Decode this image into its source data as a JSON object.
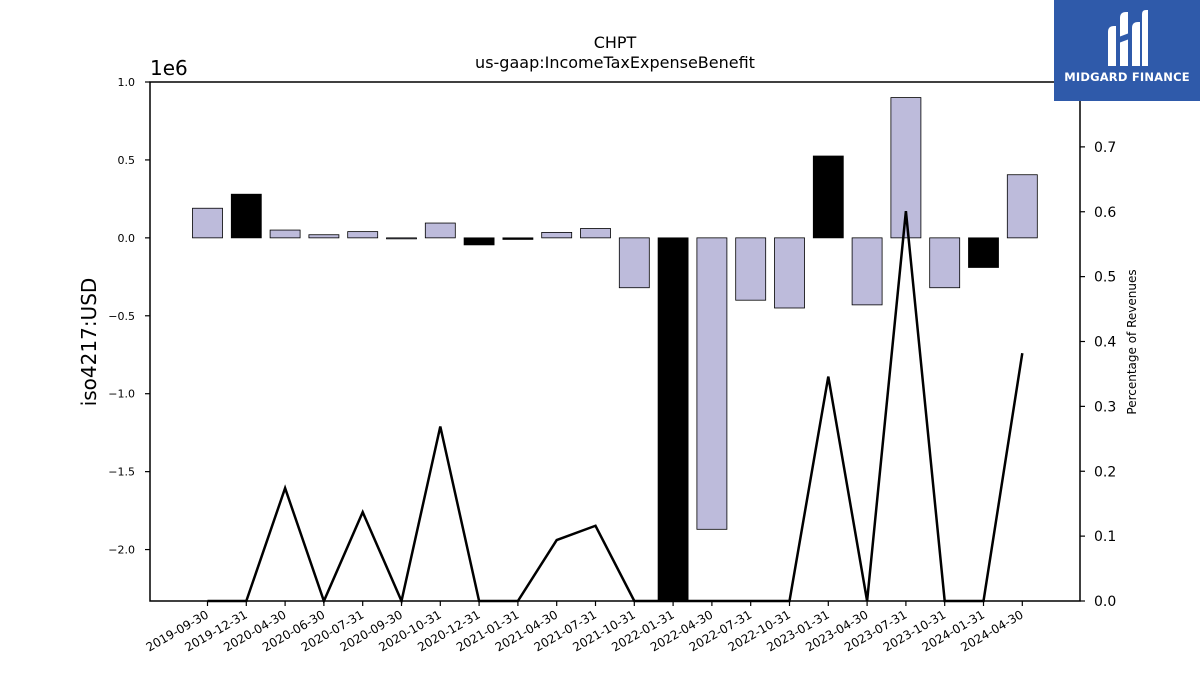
{
  "brand": {
    "name": "MIDGARD FINANCE",
    "icon": "midgard-logo-icon",
    "color": "#2f5aaa"
  },
  "chart_data": {
    "type": "bar",
    "title": "CHPT",
    "subtitle": "us-gaap:IncomeTaxExpenseBenefit",
    "ylabel": "iso4217:USD",
    "y_offset_label": "1e6",
    "y2label": "Percentage of Revenues",
    "ylim": [
      -2.33,
      1.0
    ],
    "y2lim": [
      0.0,
      0.8
    ],
    "yticks": [
      1.0,
      0.5,
      0.0,
      -0.5,
      -1.0,
      -1.5,
      -2.0
    ],
    "y2ticks": [
      0.0,
      0.1,
      0.2,
      0.3,
      0.4,
      0.5,
      0.6,
      0.7
    ],
    "grid": false,
    "categories": [
      "2019-09-30",
      "2019-12-31",
      "2020-04-30",
      "2020-06-30",
      "2020-07-31",
      "2020-09-30",
      "2020-10-31",
      "2020-12-31",
      "2021-01-31",
      "2021-04-30",
      "2021-07-31",
      "2021-10-31",
      "2022-01-31",
      "2022-04-30",
      "2022-07-31",
      "2022-10-31",
      "2023-01-31",
      "2023-04-30",
      "2023-07-31",
      "2023-10-31",
      "2024-01-31",
      "2024-04-30"
    ],
    "series": [
      {
        "values": [
          0.19,
          0.28,
          0.05,
          0.02,
          0.04,
          -0.005,
          0.095,
          -0.045,
          -0.01,
          0.035,
          0.06,
          -0.32,
          -2.33,
          -1.87,
          -0.4,
          -0.45,
          0.525,
          -0.43,
          0.9,
          -0.32,
          -0.19,
          0.405
        ],
        "colors": [
          "#bdbbdb",
          "#000000",
          "#bdbbdb",
          "#bdbbdb",
          "#bdbbdb",
          "#bdbbdb",
          "#bdbbdb",
          "#000000",
          "#000000",
          "#bdbbdb",
          "#bdbbdb",
          "#bdbbdb",
          "#000000",
          "#bdbbdb",
          "#bdbbdb",
          "#bdbbdb",
          "#000000",
          "#bdbbdb",
          "#bdbbdb",
          "#bdbbdb",
          "#000000",
          "#bdbbdb"
        ]
      },
      {
        "axis": "right",
        "type": "line",
        "color": "#000000",
        "values": [
          0.0,
          0.0,
          0.174,
          0.0,
          0.137,
          0.0,
          0.269,
          0.0,
          0.0,
          0.094,
          0.116,
          0.0,
          0.0,
          0.0,
          0.0,
          0.0,
          0.346,
          0.0,
          0.601,
          0.0,
          0.0,
          0.382
        ]
      }
    ]
  }
}
